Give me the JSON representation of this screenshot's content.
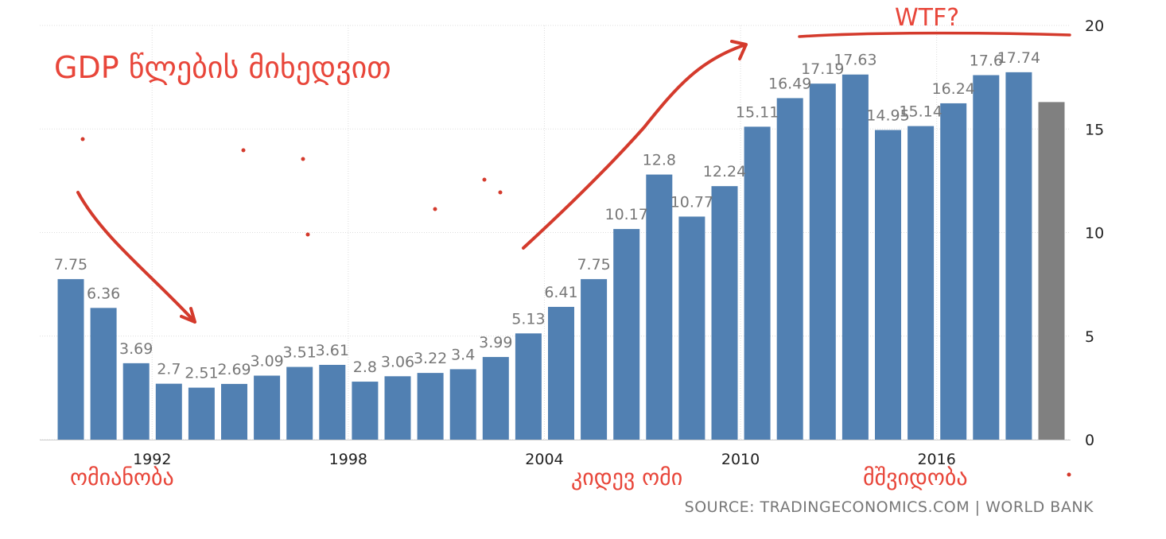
{
  "chart_data": {
    "type": "bar",
    "x": [
      1990,
      1991,
      1992,
      1993,
      1994,
      1995,
      1996,
      1997,
      1998,
      1999,
      2000,
      2001,
      2002,
      2003,
      2004,
      2005,
      2006,
      2007,
      2008,
      2009,
      2010,
      2011,
      2012,
      2013,
      2014,
      2015,
      2016,
      2017,
      2018,
      2019,
      2020
    ],
    "values": [
      7.75,
      6.36,
      3.69,
      2.7,
      2.51,
      2.69,
      3.09,
      3.51,
      3.61,
      2.8,
      3.06,
      3.22,
      3.4,
      3.99,
      5.13,
      6.41,
      7.75,
      10.17,
      12.8,
      10.77,
      12.24,
      15.11,
      16.49,
      17.19,
      17.63,
      14.95,
      15.14,
      16.24,
      17.6,
      17.74,
      16.3
    ],
    "labels": [
      "7.75",
      "6.36",
      "3.69",
      "2.7",
      "2.51",
      "2.69",
      "3.09",
      "3.51",
      "3.61",
      "2.8",
      "3.06",
      "3.22",
      "3.4",
      "3.99",
      "5.13",
      "6.41",
      "7.75",
      "10.17",
      "12.8",
      "10.77",
      "12.24",
      "15.11",
      "16.49",
      "17.19",
      "17.63",
      "14.95",
      "15.14",
      "16.24",
      "17.6",
      "17.74",
      ""
    ],
    "highlight_last": true,
    "xticks": [
      "1992",
      "1998",
      "2004",
      "2010",
      "2016"
    ],
    "xtick_years": [
      1992,
      1998,
      2004,
      2010,
      2016
    ],
    "yticks": [
      "0",
      "5",
      "10",
      "15",
      "20"
    ],
    "ylim": [
      0,
      20
    ],
    "yaxis_side": "right",
    "grid": true,
    "title": "",
    "xlabel": "",
    "ylabel": "",
    "colors": {
      "bar": "#5180b2",
      "bar_last": "#808080",
      "label": "#777777",
      "annotation": "#e8463a",
      "grid": "#dddddd"
    }
  },
  "annotations": {
    "heading": "GDP წლების მიხედვით",
    "wtf": "WTF?",
    "period_1": "ომიანობა",
    "period_2": "კიდევ ომი",
    "period_3": "მშვიდობა"
  },
  "source": "SOURCE: TRADINGECONOMICS.COM | WORLD BANK"
}
